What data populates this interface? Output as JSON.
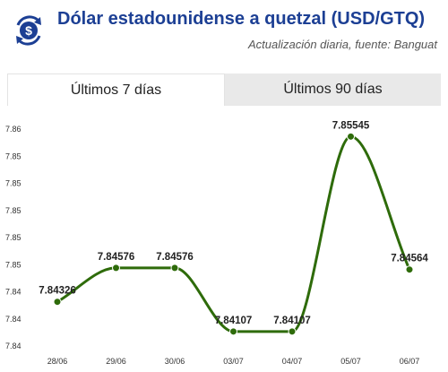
{
  "header": {
    "title": "Dólar estadounidense a quetzal (USD/GTQ)",
    "subtitle": "Actualización diaria, fuente: Banguat"
  },
  "tabs": [
    {
      "label": "Últimos 7 días",
      "active": true
    },
    {
      "label": "Últimos 90 días",
      "active": false
    }
  ],
  "colors": {
    "title": "#1c3f94",
    "line": "#2e6b0a",
    "logo": "#1c3f94"
  },
  "icons": {
    "logo": "dollar-exchange-icon"
  },
  "chart_data": {
    "type": "line",
    "categories": [
      "28/06",
      "29/06",
      "30/06",
      "03/07",
      "04/07",
      "05/07",
      "06/07"
    ],
    "values": [
      7.84326,
      7.84576,
      7.84576,
      7.84107,
      7.84107,
      7.85545,
      7.84564
    ],
    "data_labels": [
      "7.84326",
      "7.84576",
      "7.84576",
      "7.84107",
      "7.84107",
      "7.85545",
      "7.84564"
    ],
    "y_ticks": [
      7.84,
      7.842,
      7.844,
      7.846,
      7.848,
      7.85,
      7.852,
      7.854,
      7.856
    ],
    "y_tick_labels": [
      "7.84",
      "7.84",
      "7.84",
      "7.85",
      "7.85",
      "7.85",
      "7.85",
      "7.85",
      "7.86"
    ],
    "ylim": [
      7.84,
      7.856
    ],
    "grid": false,
    "legend": "none"
  }
}
